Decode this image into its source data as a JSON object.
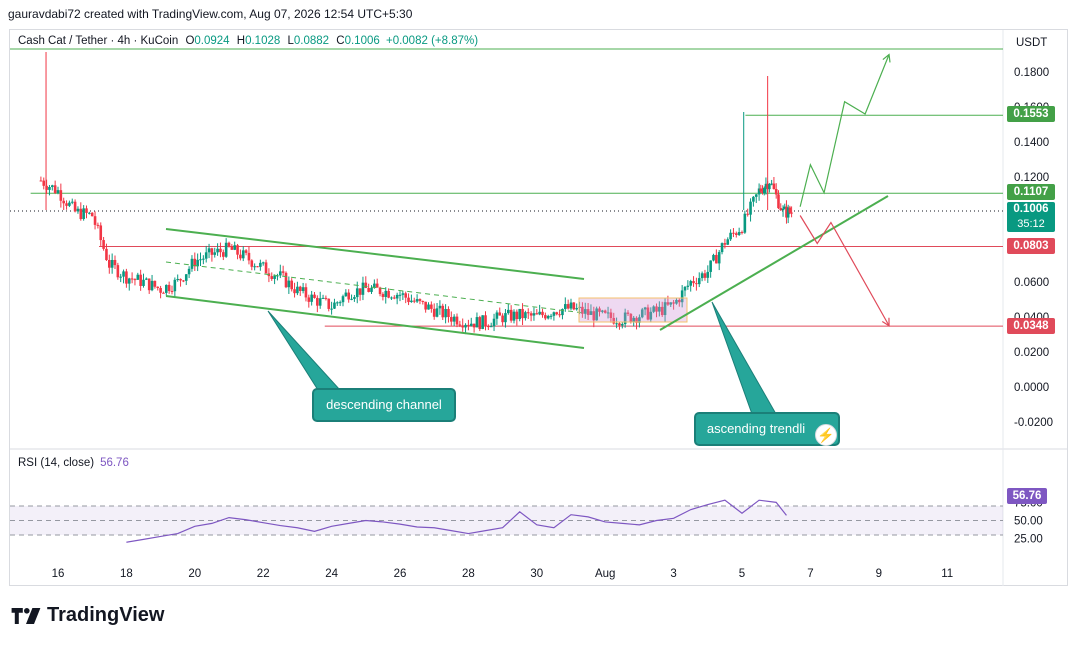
{
  "header": {
    "attribution": "gauravdabi72 created with TradingView.com, Aug 07, 2026 12:54 UTC+5:30"
  },
  "legend": {
    "symbol": "Cash Cat / Tether · 4h · KuCoin",
    "open_label": "O",
    "open": "0.0924",
    "high_label": "H",
    "high": "0.1028",
    "low_label": "L",
    "low": "0.0882",
    "close_label": "C",
    "close": "0.1006",
    "change": "+0.0082 (+8.87%)"
  },
  "currency": "USDT",
  "price_tags": {
    "level_1553": "0.1553",
    "level_1107": "0.1107",
    "current_price": "0.1006",
    "countdown": "35:12",
    "level_0803": "0.0803",
    "level_0348": "0.0348"
  },
  "annotations": {
    "descending_channel": "descending channel",
    "ascending_trendline": "ascending trendli"
  },
  "rsi": {
    "label": "RSI (14, close)",
    "value": "56.76",
    "axis_ticks": [
      "75.00",
      "50.00",
      "25.00"
    ]
  },
  "brand": {
    "name": "TradingView"
  },
  "colors": {
    "up": "#089981",
    "down": "#f23645",
    "rsi_line": "#7e57c2",
    "channel": "#4caf50",
    "support_line": "#e04a5a",
    "resistance_line": "#4caf50",
    "callout": "#26a69a"
  },
  "chart_data": [
    {
      "type": "candlestick",
      "title": "Cash Cat / Tether · 4h · KuCoin",
      "y_axis_ticks": [
        "0.1800",
        "0.1600",
        "0.1400",
        "0.1200",
        "0.0800",
        "0.0600",
        "0.0400",
        "0.0200",
        "0.0000",
        "-0.0200"
      ],
      "x_axis_ticks": [
        "16",
        "18",
        "20",
        "22",
        "24",
        "26",
        "28",
        "30",
        "Aug",
        "3",
        "5",
        "7",
        "9",
        "11"
      ],
      "ylim": [
        -0.026,
        0.19
      ],
      "horizontal_levels": [
        {
          "price": 0.1553,
          "color": "#4caf50"
        },
        {
          "price": 0.1107,
          "color": "#4caf50"
        },
        {
          "price": 0.0803,
          "color": "#e04a5a"
        },
        {
          "price": 0.0348,
          "color": "#e04a5a"
        }
      ],
      "price_path": [
        {
          "day": 15.5,
          "price": 0.118
        },
        {
          "day": 16.0,
          "price": 0.112
        },
        {
          "day": 16.5,
          "price": 0.1
        },
        {
          "day": 17.0,
          "price": 0.098
        },
        {
          "day": 17.5,
          "price": 0.07
        },
        {
          "day": 18.0,
          "price": 0.063
        },
        {
          "day": 18.5,
          "price": 0.06
        },
        {
          "day": 19.0,
          "price": 0.056
        },
        {
          "day": 19.5,
          "price": 0.06
        },
        {
          "day": 20.0,
          "price": 0.072
        },
        {
          "day": 20.5,
          "price": 0.076
        },
        {
          "day": 21.0,
          "price": 0.079
        },
        {
          "day": 21.5,
          "price": 0.074
        },
        {
          "day": 22.0,
          "price": 0.068
        },
        {
          "day": 22.5,
          "price": 0.063
        },
        {
          "day": 23.0,
          "price": 0.055
        },
        {
          "day": 23.5,
          "price": 0.05
        },
        {
          "day": 24.0,
          "price": 0.046
        },
        {
          "day": 24.5,
          "price": 0.054
        },
        {
          "day": 25.0,
          "price": 0.056
        },
        {
          "day": 25.5,
          "price": 0.055
        },
        {
          "day": 26.0,
          "price": 0.053
        },
        {
          "day": 26.5,
          "price": 0.048
        },
        {
          "day": 27.0,
          "price": 0.044
        },
        {
          "day": 27.5,
          "price": 0.04
        },
        {
          "day": 28.0,
          "price": 0.037
        },
        {
          "day": 28.5,
          "price": 0.037
        },
        {
          "day": 29.0,
          "price": 0.04
        },
        {
          "day": 29.5,
          "price": 0.041
        },
        {
          "day": 30.0,
          "price": 0.04
        },
        {
          "day": 30.5,
          "price": 0.044
        },
        {
          "day": 31.0,
          "price": 0.045
        },
        {
          "day": 31.5,
          "price": 0.042
        },
        {
          "day": 32.0,
          "price": 0.04
        },
        {
          "day": 32.5,
          "price": 0.039
        },
        {
          "day": 33.0,
          "price": 0.041
        },
        {
          "day": 33.5,
          "price": 0.043
        },
        {
          "day": 34.0,
          "price": 0.047
        },
        {
          "day": 34.5,
          "price": 0.06
        },
        {
          "day": 35.0,
          "price": 0.066
        },
        {
          "day": 35.5,
          "price": 0.083
        },
        {
          "day": 36.0,
          "price": 0.092
        },
        {
          "day": 36.5,
          "price": 0.112
        },
        {
          "day": 36.8,
          "price": 0.118
        },
        {
          "day": 37.2,
          "price": 0.1
        },
        {
          "day": 37.5,
          "price": 0.1
        }
      ],
      "projections": {
        "bullish": [
          [
            37.7,
            0.103
          ],
          [
            38.0,
            0.127
          ],
          [
            38.4,
            0.111
          ],
          [
            39.0,
            0.163
          ],
          [
            39.6,
            0.156
          ],
          [
            40.3,
            0.19
          ]
        ],
        "bearish": [
          [
            37.7,
            0.098
          ],
          [
            38.2,
            0.082
          ],
          [
            38.6,
            0.094
          ],
          [
            40.3,
            0.035
          ]
        ]
      }
    },
    {
      "type": "line",
      "title": "RSI (14, close)",
      "y_axis_ticks": [
        "75.00",
        "50.00",
        "25.00"
      ],
      "ylim": [
        15,
        90
      ],
      "band": [
        30,
        70
      ],
      "x": [
        18.0,
        18.5,
        19.0,
        19.5,
        20.0,
        20.5,
        21.0,
        21.5,
        22.0,
        22.5,
        23.0,
        23.5,
        24.0,
        24.5,
        25.0,
        25.5,
        26.0,
        26.5,
        27.0,
        27.5,
        28.0,
        28.5,
        29.0,
        29.5,
        30.0,
        30.5,
        31.0,
        31.5,
        32.0,
        32.5,
        33.0,
        33.5,
        34.0,
        34.5,
        35.0,
        35.5,
        36.0,
        36.5,
        37.0,
        37.3
      ],
      "series": [
        {
          "values": [
            20,
            24,
            28,
            32,
            42,
            46,
            54,
            51,
            47,
            43,
            40,
            35,
            42,
            46,
            50,
            48,
            45,
            41,
            40,
            36,
            32,
            36,
            40,
            62,
            44,
            40,
            58,
            55,
            48,
            46,
            44,
            50,
            53,
            65,
            72,
            78,
            60,
            78,
            75,
            57
          ]
        }
      ]
    }
  ]
}
